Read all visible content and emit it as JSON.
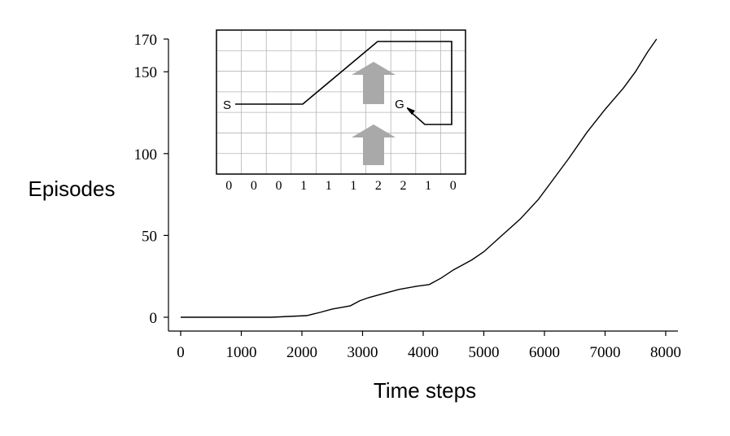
{
  "chart_data": {
    "type": "line",
    "xlabel": "Time steps",
    "ylabel": "Episodes",
    "xlim": [
      0,
      8000
    ],
    "ylim": [
      0,
      170
    ],
    "xticks": [
      0,
      1000,
      2000,
      3000,
      4000,
      5000,
      6000,
      7000,
      8000
    ],
    "yticks": [
      0,
      50,
      100,
      150,
      170
    ],
    "grid": false,
    "series": [
      {
        "points": [
          [
            0,
            0
          ],
          [
            1000,
            0
          ],
          [
            1500,
            0
          ],
          [
            2080,
            1
          ],
          [
            2300,
            3
          ],
          [
            2500,
            5
          ],
          [
            2800,
            7
          ],
          [
            2950,
            10
          ],
          [
            3100,
            12
          ],
          [
            3300,
            14
          ],
          [
            3600,
            17
          ],
          [
            3900,
            19
          ],
          [
            4100,
            20
          ],
          [
            4300,
            24
          ],
          [
            4500,
            29
          ],
          [
            4800,
            35
          ],
          [
            5000,
            40
          ],
          [
            5300,
            50
          ],
          [
            5600,
            60
          ],
          [
            5900,
            72
          ],
          [
            6100,
            82
          ],
          [
            6400,
            97
          ],
          [
            6700,
            113
          ],
          [
            7000,
            127
          ],
          [
            7300,
            140
          ],
          [
            7500,
            150
          ],
          [
            7700,
            162
          ],
          [
            7850,
            170
          ]
        ]
      }
    ],
    "inset": {
      "description_labels": {
        "start": "S",
        "goal": "G"
      },
      "wind_strengths": [
        "0",
        "0",
        "0",
        "1",
        "1",
        "1",
        "2",
        "2",
        "1",
        "0"
      ]
    }
  }
}
